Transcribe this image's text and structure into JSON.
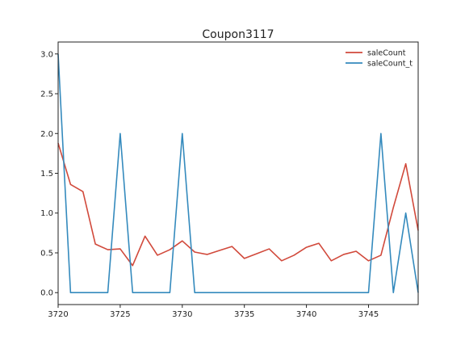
{
  "chart_data": {
    "type": "line",
    "title": "Coupon3117",
    "xlabel": "",
    "ylabel": "",
    "xlim": [
      3720,
      3749
    ],
    "ylim": [
      -0.15,
      3.15
    ],
    "grid": false,
    "legend_position": "top-right",
    "x_ticks": [
      3720,
      3725,
      3730,
      3735,
      3740,
      3745
    ],
    "x_tick_labels": [
      "3720",
      "3725",
      "3730",
      "3735",
      "3740",
      "3745"
    ],
    "y_ticks": [
      0.0,
      0.5,
      1.0,
      1.5,
      2.0,
      2.5,
      3.0
    ],
    "y_tick_labels": [
      "0.0",
      "0.5",
      "1.0",
      "1.5",
      "2.0",
      "2.5",
      "3.0"
    ],
    "x": [
      3720,
      3721,
      3722,
      3723,
      3724,
      3725,
      3726,
      3727,
      3728,
      3729,
      3730,
      3731,
      3732,
      3733,
      3734,
      3735,
      3736,
      3737,
      3738,
      3739,
      3740,
      3741,
      3742,
      3743,
      3744,
      3745,
      3746,
      3747,
      3748,
      3749
    ],
    "series": [
      {
        "name": "saleCount",
        "color": "#d1493b",
        "values": [
          1.88,
          1.36,
          1.27,
          0.61,
          0.54,
          0.55,
          0.34,
          0.71,
          0.47,
          0.54,
          0.65,
          0.51,
          0.48,
          0.53,
          0.58,
          0.43,
          0.49,
          0.55,
          0.4,
          0.47,
          0.57,
          0.62,
          0.4,
          0.48,
          0.52,
          0.4,
          0.47,
          1.07,
          1.62,
          0.78
        ]
      },
      {
        "name": "saleCount_t",
        "color": "#348abd",
        "values": [
          3,
          0,
          0,
          0,
          0,
          2,
          0,
          0,
          0,
          0,
          2,
          0,
          0,
          0,
          0,
          0,
          0,
          0,
          0,
          0,
          0,
          0,
          0,
          0,
          0,
          0,
          2,
          0,
          1,
          0
        ]
      }
    ]
  }
}
